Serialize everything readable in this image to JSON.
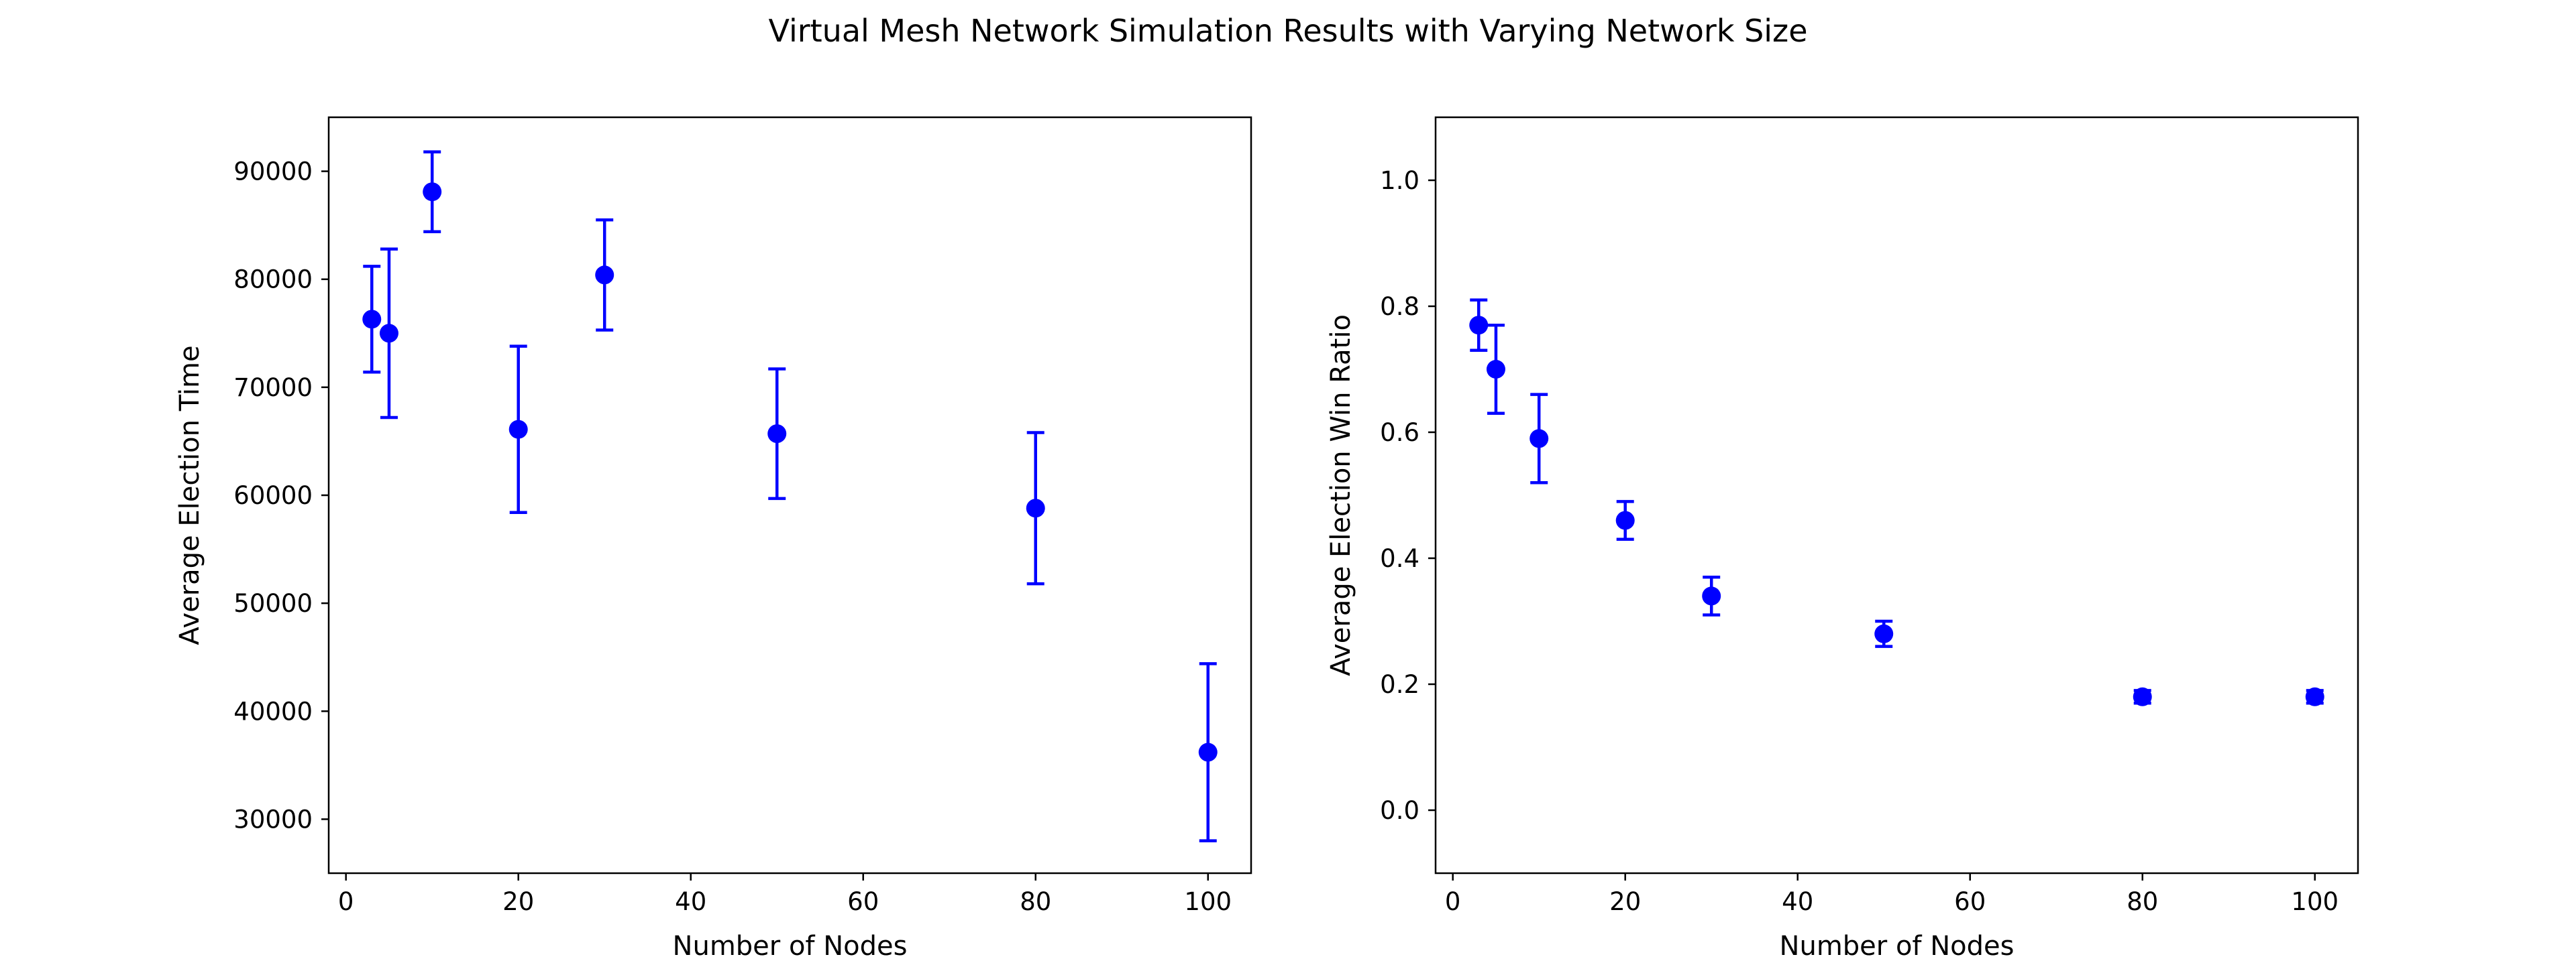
{
  "figure": {
    "title": "Virtual Mesh Network Simulation Results with Varying Network Size"
  },
  "colors": {
    "series": "#0000ff",
    "axes": "#000000",
    "background": "#ffffff"
  },
  "chart_data": [
    {
      "type": "scatter",
      "error_bars": true,
      "xlabel": "Number of Nodes",
      "ylabel": "Average Election Time",
      "xlim": [
        -2,
        105
      ],
      "ylim": [
        25000,
        95000
      ],
      "xticks": [
        0,
        20,
        40,
        60,
        80,
        100
      ],
      "yticks": [
        30000,
        40000,
        50000,
        60000,
        70000,
        80000,
        90000
      ],
      "grid": false,
      "series": [
        {
          "x": [
            3,
            5,
            10,
            20,
            30,
            50,
            80,
            100
          ],
          "y": [
            76300,
            75000,
            88100,
            66100,
            80400,
            65700,
            58800,
            36200
          ],
          "yerr": [
            4900,
            7800,
            3700,
            7700,
            5100,
            6000,
            7000,
            8200
          ]
        }
      ]
    },
    {
      "type": "scatter",
      "error_bars": true,
      "xlabel": "Number of Nodes",
      "ylabel": "Average Election Win Ratio",
      "xlim": [
        -2,
        105
      ],
      "ylim": [
        -0.1,
        1.1
      ],
      "xticks": [
        0,
        20,
        40,
        60,
        80,
        100
      ],
      "yticks": [
        0.0,
        0.2,
        0.4,
        0.6,
        0.8,
        1.0
      ],
      "grid": false,
      "series": [
        {
          "x": [
            3,
            5,
            10,
            20,
            30,
            50,
            80,
            100
          ],
          "y": [
            0.77,
            0.7,
            0.59,
            0.46,
            0.34,
            0.28,
            0.18,
            0.18
          ],
          "yerr": [
            0.04,
            0.07,
            0.07,
            0.03,
            0.03,
            0.02,
            0.01,
            0.01
          ]
        }
      ]
    }
  ]
}
